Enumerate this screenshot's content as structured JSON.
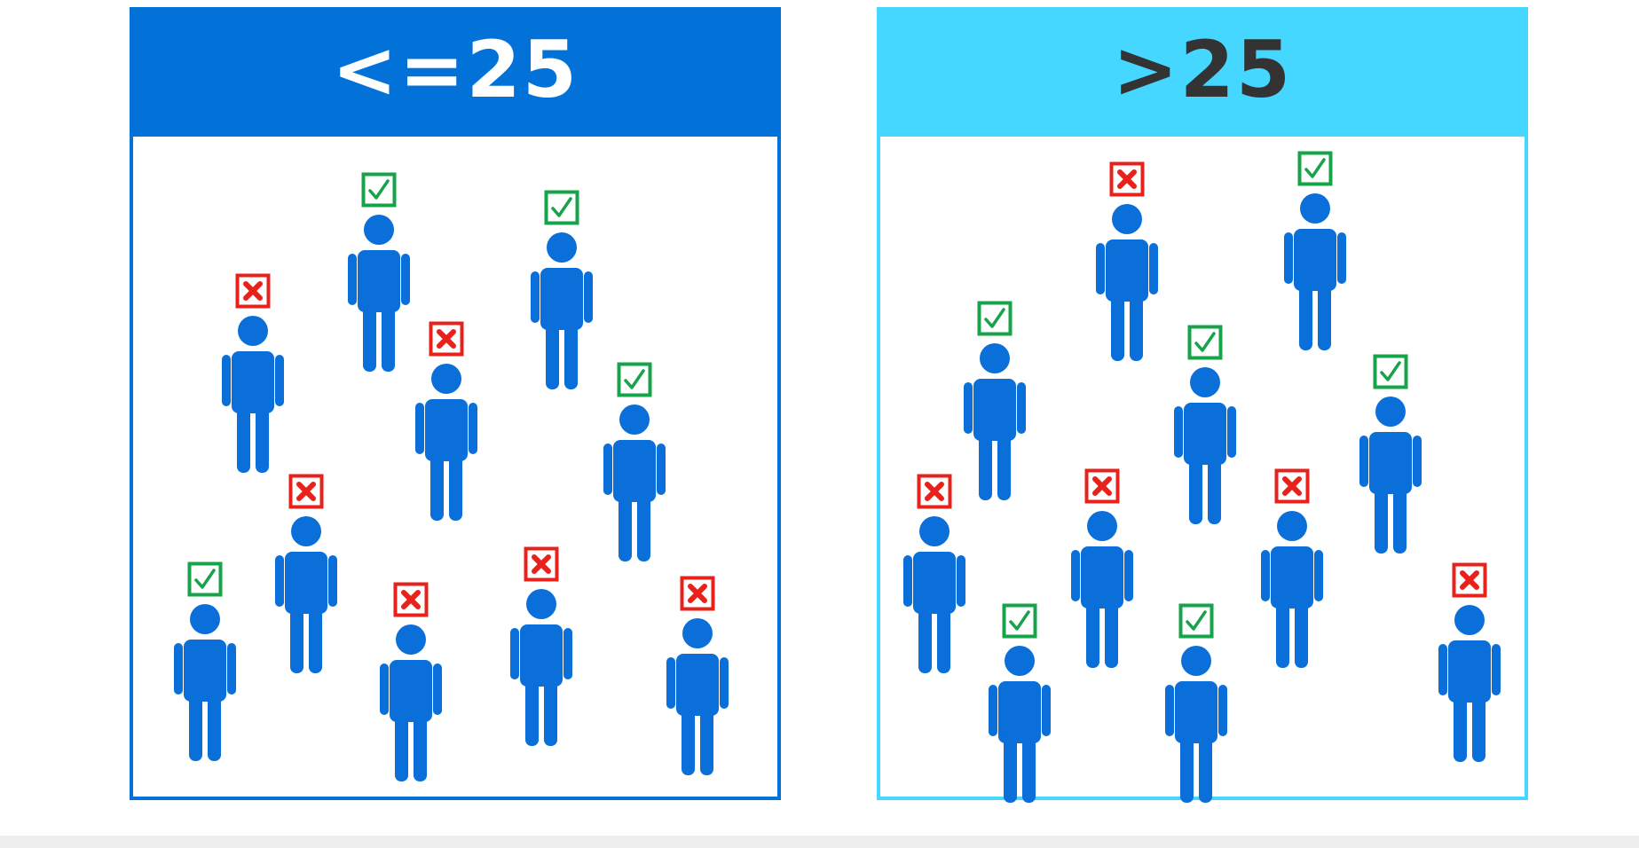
{
  "panels": {
    "left": {
      "label": "<=25",
      "header_color": "#0272d9",
      "border_color": "#0272d9",
      "header_text_color": "#ffffff",
      "people": [
        {
          "status": "check"
        },
        {
          "status": "check"
        },
        {
          "status": "cross"
        },
        {
          "status": "cross"
        },
        {
          "status": "check"
        },
        {
          "status": "cross"
        },
        {
          "status": "check"
        },
        {
          "status": "cross"
        },
        {
          "status": "cross"
        },
        {
          "status": "cross"
        }
      ]
    },
    "right": {
      "label": ">25",
      "header_color": "#45d7ff",
      "border_color": "#45d7ff",
      "header_text_color": "#333333",
      "people": [
        {
          "status": "cross"
        },
        {
          "status": "check"
        },
        {
          "status": "check"
        },
        {
          "status": "check"
        },
        {
          "status": "check"
        },
        {
          "status": "cross"
        },
        {
          "status": "cross"
        },
        {
          "status": "cross"
        },
        {
          "status": "check"
        },
        {
          "status": "check"
        },
        {
          "status": "cross"
        }
      ]
    }
  },
  "colors": {
    "person": "#0a6fd8",
    "check": "#16a34a",
    "cross": "#e8221b"
  },
  "icons": {
    "person": "person-icon",
    "check": "checkbox-checked-icon",
    "cross": "checkbox-x-icon"
  }
}
